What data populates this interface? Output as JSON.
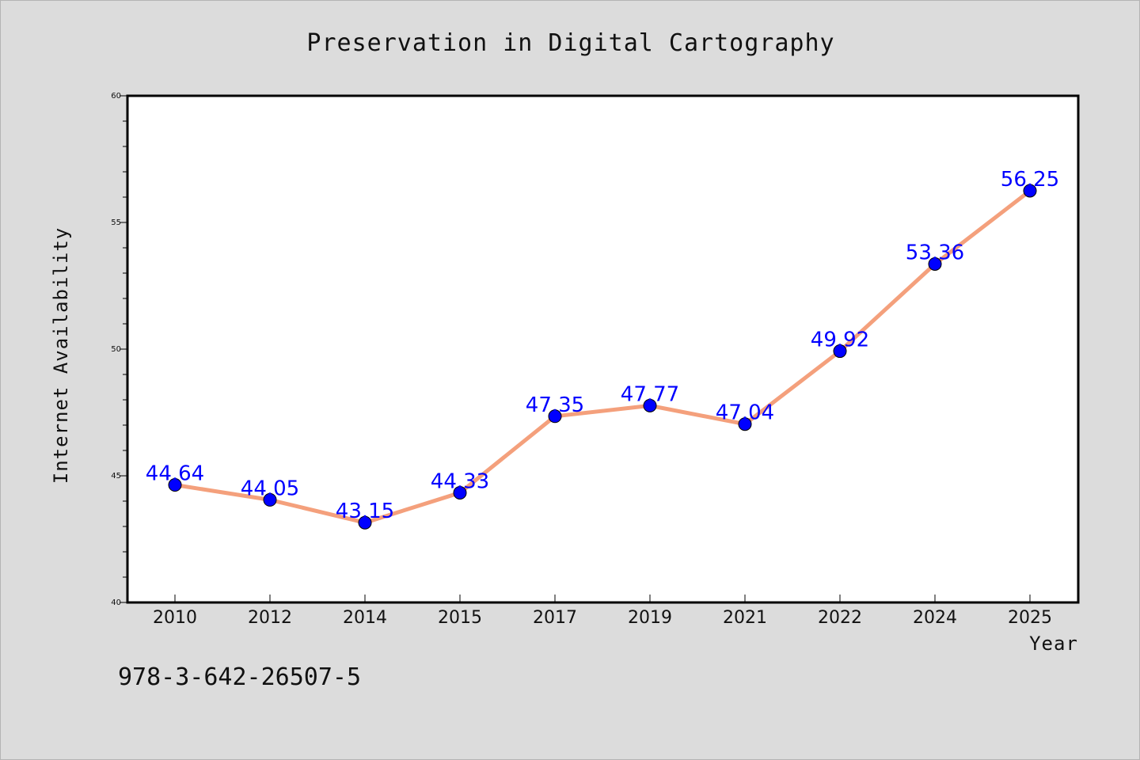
{
  "chart_data": {
    "type": "line",
    "title": "Preservation in Digital Cartography",
    "xlabel": "Year",
    "ylabel": "Internet Availability",
    "categories": [
      "2010",
      "2012",
      "2014",
      "2015",
      "2017",
      "2019",
      "2021",
      "2022",
      "2024",
      "2025"
    ],
    "series": [
      {
        "values": [
          44.64,
          44.05,
          43.15,
          44.33,
          47.35,
          47.77,
          47.04,
          49.92,
          53.36,
          56.25
        ],
        "labels": [
          "44.64",
          "44.05",
          "43.15",
          "44.33",
          "47.35",
          "47.77",
          "47.04",
          "49.92",
          "53.36",
          "56.25"
        ],
        "line_color": "#f4a07c",
        "marker_color": "#0000ff"
      }
    ],
    "ylim": [
      40,
      60
    ],
    "yticks": [
      40,
      45,
      50,
      55,
      60
    ],
    "ytick_labels": [
      "40",
      "45",
      "50",
      "55",
      "60"
    ],
    "grid": false,
    "legend": "none"
  },
  "annotation": {
    "isbn": "978-3-642-26507-5"
  },
  "colors": {
    "background": "#dcdcdc",
    "plot_background": "#ffffff",
    "axis": "#000000"
  }
}
